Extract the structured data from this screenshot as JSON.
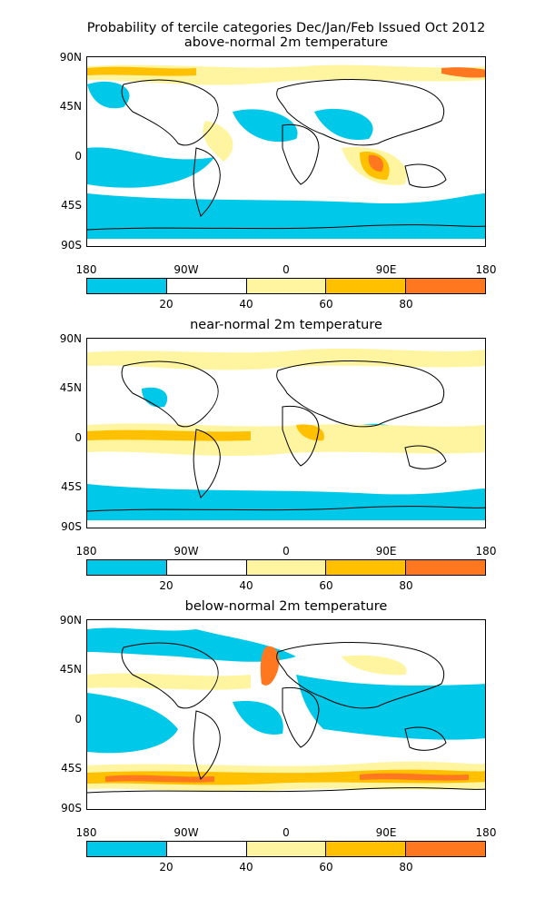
{
  "title_line1": "Probability of tercile categories Dec/Jan/Feb Issued Oct 2012",
  "title_line2": "above-normal 2m temperature",
  "panels": [
    {
      "subtitle": ""
    },
    {
      "subtitle": "near-normal 2m temperature"
    },
    {
      "subtitle": "below-normal 2m temperature"
    }
  ],
  "lat_labels": [
    "90N",
    "45N",
    "0",
    "45S",
    "90S"
  ],
  "lon_labels": [
    "180",
    "90W",
    "0",
    "90E",
    "180"
  ],
  "colorbar": {
    "colors": [
      "#00c8e8",
      "#ffffff",
      "#fff5a0",
      "#ffc000",
      "#ff7820"
    ],
    "labels": [
      "20",
      "40",
      "60",
      "80"
    ]
  },
  "category_colors": {
    "low": "#00c8e8",
    "mid": "#fff5a0",
    "high": "#ffc000",
    "very_high": "#ff7820"
  }
}
